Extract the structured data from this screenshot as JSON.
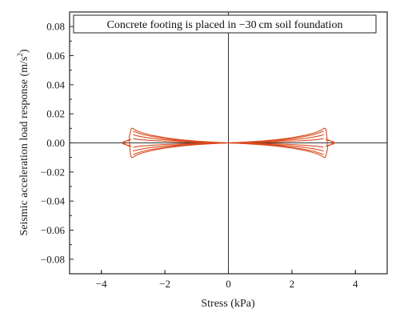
{
  "chart_data": {
    "type": "line",
    "title": "Concrete footing is placed in −30 cm soil foundation",
    "xlabel": "Stress (kPa)",
    "ylabel_main": "Seismic acceleration load response (m/s",
    "ylabel_sup": "2",
    "ylabel_close": ")",
    "xlim": [
      -5,
      5
    ],
    "ylim": [
      -0.09,
      0.09
    ],
    "xticks": [
      -4,
      -2,
      0,
      2,
      4
    ],
    "xtick_labels": [
      "−4",
      "−2",
      "0",
      "2",
      "4"
    ],
    "yticks": [
      -0.08,
      -0.06,
      -0.04,
      -0.02,
      0.0,
      0.02,
      0.04,
      0.06,
      0.08
    ],
    "ytick_labels": [
      "−0.08",
      "−0.06",
      "−0.04",
      "−0.02",
      "0.00",
      "0.02",
      "0.04",
      "0.06",
      "0.08"
    ],
    "grid": false,
    "zero_lines": true,
    "series_color": "#d94a1e",
    "series": [
      {
        "x": [
          0,
          0.5,
          1.0,
          1.5,
          2.0,
          2.4,
          2.7,
          2.9,
          3.0,
          3.05
        ],
        "y": [
          0,
          0.0005,
          0.0012,
          0.0022,
          0.0036,
          0.0052,
          0.0068,
          0.0085,
          0.0098,
          0.0102
        ]
      },
      {
        "x": [
          0,
          0.5,
          1.0,
          1.5,
          2.0,
          2.4,
          2.7,
          2.9,
          3.0
        ],
        "y": [
          0,
          0.0004,
          0.001,
          0.0018,
          0.003,
          0.0044,
          0.0058,
          0.0072,
          0.008
        ]
      },
      {
        "x": [
          0,
          0.5,
          1.0,
          1.5,
          2.0,
          2.4,
          2.7,
          2.9,
          3.0
        ],
        "y": [
          0,
          0.0003,
          0.0007,
          0.0013,
          0.0021,
          0.0031,
          0.0041,
          0.005,
          0.0056
        ]
      },
      {
        "x": [
          0,
          0.5,
          1.0,
          1.5,
          2.0,
          2.4,
          2.7,
          2.9,
          3.0
        ],
        "y": [
          0,
          0.0002,
          0.0004,
          0.0007,
          0.0011,
          0.0016,
          0.0021,
          0.0026,
          0.003
        ]
      },
      {
        "x": [
          0,
          0.5,
          1.0,
          1.5,
          2.0,
          2.4,
          2.7,
          2.9,
          3.0,
          3.05
        ],
        "y": [
          0,
          -0.0005,
          -0.0012,
          -0.0022,
          -0.0036,
          -0.0052,
          -0.0068,
          -0.0085,
          -0.0098,
          -0.0102
        ]
      },
      {
        "x": [
          0,
          0.5,
          1.0,
          1.5,
          2.0,
          2.4,
          2.7,
          2.9,
          3.0
        ],
        "y": [
          0,
          -0.0004,
          -0.001,
          -0.0018,
          -0.003,
          -0.0044,
          -0.0058,
          -0.0072,
          -0.008
        ]
      },
      {
        "x": [
          0,
          0.5,
          1.0,
          1.5,
          2.0,
          2.4,
          2.7,
          2.9,
          3.0
        ],
        "y": [
          0,
          -0.0003,
          -0.0007,
          -0.0013,
          -0.0021,
          -0.0031,
          -0.0041,
          -0.005,
          -0.0056
        ]
      },
      {
        "x": [
          0,
          0.5,
          1.0,
          1.5,
          2.0,
          2.4,
          2.7,
          2.9,
          3.0
        ],
        "y": [
          0,
          -0.0002,
          -0.0004,
          -0.0007,
          -0.0011,
          -0.0016,
          -0.0021,
          -0.0026,
          -0.003
        ]
      },
      {
        "x": [
          3.05,
          3.08,
          3.1,
          3.12,
          3.08,
          3.05
        ],
        "y": [
          0.0102,
          0.008,
          0.004,
          -0.004,
          -0.008,
          -0.0102
        ]
      },
      {
        "x": [
          3.05,
          3.15,
          3.25,
          3.3,
          3.25,
          3.15,
          3.05
        ],
        "y": [
          0.0025,
          0.002,
          0.001,
          0,
          -0.001,
          -0.002,
          -0.0025
        ]
      },
      {
        "x": [
          3.1,
          3.2,
          3.3,
          3.35,
          3.3,
          3.2,
          3.1
        ],
        "y": [
          0.0018,
          0.0014,
          0.0008,
          0,
          -0.0008,
          -0.0014,
          -0.0018
        ]
      }
    ],
    "symmetric_about_origin": true
  }
}
